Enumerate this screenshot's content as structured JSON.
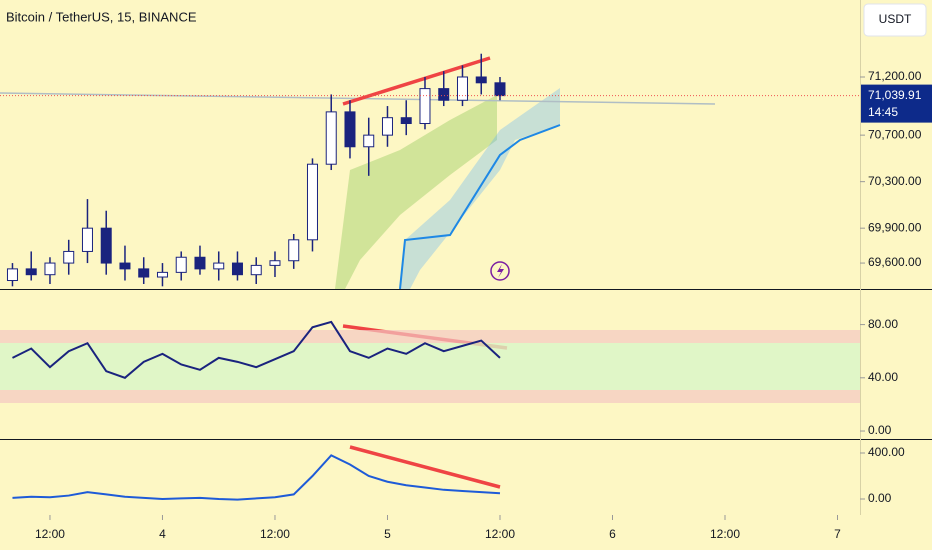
{
  "header": {
    "title": "Bitcoin / TetherUS, 15, BINANCE",
    "currency": "USDT"
  },
  "price_tag": {
    "price": {
      "value": 71039.91,
      "label": "71,039.91"
    },
    "countdown": "14:45"
  },
  "main_pane": {
    "ylim": [
      69377,
      71862
    ],
    "yticks": [
      {
        "value": 71200,
        "label": "71,200.00"
      },
      {
        "value": 70700,
        "label": "70,700.00"
      },
      {
        "value": 70300,
        "label": "70,300.00"
      },
      {
        "value": 69900,
        "label": "69,900.00"
      },
      {
        "value": 69600,
        "label": "69,600.00"
      }
    ],
    "up_color": "#ffffff",
    "down_color": "#1a237e",
    "candles": {
      "x": [
        8,
        10,
        12,
        14,
        16,
        18,
        20,
        22,
        24,
        26,
        28,
        30,
        32,
        34,
        36,
        38,
        40,
        42,
        44,
        46,
        48,
        50,
        52,
        54,
        56,
        58,
        60
      ],
      "open": [
        69450,
        69550,
        69500,
        69600,
        69700,
        69900,
        69600,
        69550,
        69480,
        69520,
        69650,
        69550,
        69600,
        69500,
        69580,
        69620,
        69800,
        70450,
        70900,
        70600,
        70700,
        70850,
        70800,
        71100,
        71000,
        71200,
        71150
      ],
      "high": [
        69600,
        69700,
        69650,
        69800,
        70150,
        70050,
        69750,
        69650,
        69600,
        69700,
        69750,
        69700,
        69700,
        69650,
        69700,
        69850,
        70500,
        71050,
        71000,
        70850,
        70950,
        71000,
        71200,
        71250,
        71300,
        71400,
        71200
      ],
      "low": [
        69400,
        69450,
        69420,
        69500,
        69600,
        69500,
        69450,
        69420,
        69400,
        69450,
        69500,
        69450,
        69450,
        69420,
        69480,
        69550,
        69700,
        70400,
        70500,
        70350,
        70600,
        70700,
        70750,
        70950,
        70950,
        71050,
        71000
      ],
      "close": [
        69550,
        69500,
        69600,
        69700,
        69900,
        69600,
        69550,
        69480,
        69520,
        69650,
        69550,
        69600,
        69500,
        69580,
        69620,
        69800,
        70450,
        70900,
        70600,
        70700,
        70850,
        70800,
        71100,
        71000,
        71200,
        71150,
        71039.91
      ]
    }
  },
  "rsi_pane": {
    "ylim": [
      -6,
      106
    ],
    "yticks": [
      {
        "value": 80,
        "label": "80.00"
      },
      {
        "value": 40,
        "label": "40.00"
      },
      {
        "value": 0,
        "label": "0.00"
      }
    ],
    "color": "#1a237e",
    "values": [
      55,
      62,
      48,
      60,
      66,
      45,
      40,
      52,
      58,
      50,
      46,
      55,
      52,
      48,
      54,
      60,
      78,
      82,
      60,
      55,
      62,
      58,
      66,
      60,
      64,
      68,
      55
    ]
  },
  "macd_pane": {
    "ylim": [
      -139,
      513
    ],
    "yticks": [
      {
        "value": 400,
        "label": "400.00"
      },
      {
        "value": 0,
        "label": "0.00"
      }
    ],
    "color": "#1e5bd8",
    "values": [
      10,
      20,
      15,
      30,
      60,
      40,
      20,
      10,
      0,
      5,
      10,
      0,
      -5,
      5,
      15,
      40,
      200,
      380,
      300,
      200,
      150,
      120,
      100,
      80,
      70,
      60,
      50
    ]
  },
  "time_axis": {
    "xlim": [
      6.67,
      98.4
    ],
    "xticks": [
      {
        "value": 12,
        "label": "12:00"
      },
      {
        "value": 24,
        "label": "4"
      },
      {
        "value": 36,
        "label": "12:00"
      },
      {
        "value": 48,
        "label": "5"
      },
      {
        "value": 60,
        "label": "12:00"
      },
      {
        "value": 72,
        "label": "6"
      },
      {
        "value": 84,
        "label": "12:00"
      },
      {
        "value": 96,
        "label": "7"
      }
    ]
  }
}
